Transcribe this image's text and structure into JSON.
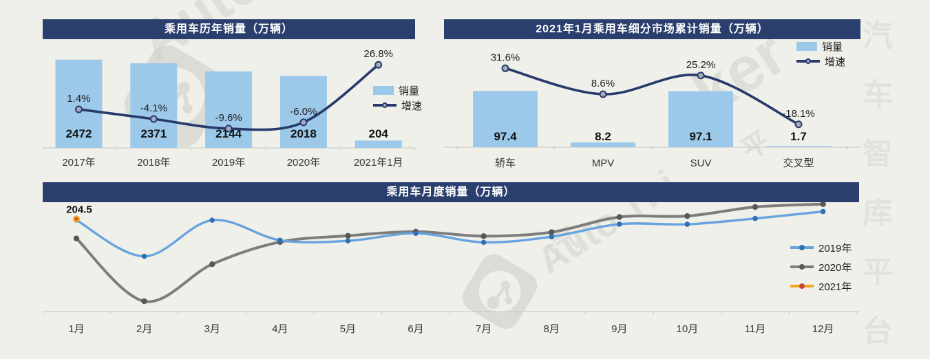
{
  "colors": {
    "background": "#F0F0EA",
    "title_bar": "#2B3F6E",
    "title_text": "#FFFFFF",
    "bar_fill": "#9CC9E9",
    "growth_line": "#273A6B",
    "marker_fill": "#A7ACBC",
    "line_2019": "#68A3DF",
    "dot_2019": "#2F71B3",
    "line_2020": "#7D7D7D",
    "dot_2020": "#585858",
    "line_2021": "#F2A71E",
    "dot_2021": "#C74634",
    "axis": "#C6C6C0",
    "watermark": "#D2D2CC"
  },
  "watermark": {
    "brand": "Auto Thinker",
    "brand_cn": "汽车智库平台",
    "fragments": {
      "f1": "Auto",
      "f2": "ker",
      "f3": "Auto Thi",
      "f4": "汽",
      "f5": "平"
    }
  },
  "chart_data": [
    {
      "type": "combo-bar-line",
      "title": "乘用车历年销量（万辆）",
      "categories": [
        "2017年",
        "2018年",
        "2019年",
        "2020年",
        "2021年1月"
      ],
      "series": [
        {
          "name": "销量",
          "type": "bar",
          "values": [
            2472,
            2371,
            2144,
            2018,
            204
          ],
          "labels": [
            "2472",
            "2371",
            "2144",
            "2018",
            "204"
          ]
        },
        {
          "name": "增速",
          "type": "line",
          "unit": "%",
          "values": [
            1.4,
            -4.1,
            -9.6,
            -6.0,
            26.8
          ],
          "labels": [
            "1.4%",
            "-4.1%",
            "-9.6%",
            "-6.0%",
            "26.8%"
          ]
        }
      ],
      "ylim_bar": [
        0,
        2600
      ],
      "ylim_line_pct": [
        -15,
        30
      ],
      "grid": false,
      "legend_position": "middle-right"
    },
    {
      "type": "combo-bar-line",
      "title": "2021年1月乘用车细分市场累计销量（万辆）",
      "categories": [
        "轿车",
        "MPV",
        "SUV",
        "交叉型"
      ],
      "series": [
        {
          "name": "销量",
          "type": "bar",
          "values": [
            97.4,
            8.2,
            97.1,
            1.7
          ],
          "labels": [
            "97.4",
            "8.2",
            "97.1",
            "1.7"
          ]
        },
        {
          "name": "增速",
          "type": "line",
          "unit": "%",
          "values": [
            31.6,
            8.6,
            25.2,
            -18.1
          ],
          "labels": [
            "31.6%",
            "8.6%",
            "25.2%",
            "-18.1%"
          ]
        }
      ],
      "ylim_bar": [
        0,
        110
      ],
      "ylim_line_pct": [
        -25,
        40
      ],
      "grid": false,
      "legend_position": "top-right"
    },
    {
      "type": "line",
      "title": "乘用车月度销量（万辆）",
      "categories": [
        "1月",
        "2月",
        "3月",
        "4月",
        "5月",
        "6月",
        "7月",
        "8月",
        "9月",
        "10月",
        "11月",
        "12月"
      ],
      "series": [
        {
          "name": "2019年",
          "values": [
            202.1,
            121.9,
            201.9,
            157.5,
            156.1,
            172.8,
            152.8,
            165.3,
            193.1,
            192.8,
            205.7,
            221.1
          ]
        },
        {
          "name": "2020年",
          "values": [
            161.4,
            22.4,
            104.3,
            153.6,
            167.4,
            176.4,
            166.5,
            175.3,
            208.8,
            211.0,
            231.1,
            237.5
          ]
        },
        {
          "name": "2021年",
          "values": [
            204.5
          ]
        }
      ],
      "annotation": {
        "text": "204.5",
        "series": "2021年",
        "month": "1月"
      },
      "ylim": [
        0,
        250
      ],
      "grid": false,
      "legend_position": "middle-right"
    }
  ]
}
